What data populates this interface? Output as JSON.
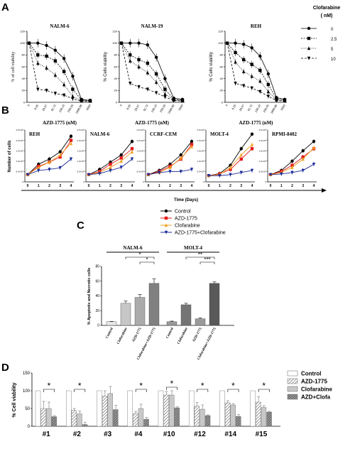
{
  "panels": {
    "A": "A",
    "B": "B",
    "C": "C",
    "D": "D"
  },
  "chart_data": [
    {
      "type": "line",
      "panel": "A",
      "x": [
        "0",
        "6.25",
        "26.07",
        "61.72",
        "156.15",
        "250.05",
        "1666.66",
        "5000"
      ],
      "xlabel": "AZD-1775 (nM)",
      "yticks": [
        "0",
        "20",
        "40",
        "60",
        "80",
        "100",
        "120"
      ],
      "ylim": [
        0,
        120
      ],
      "legend": {
        "title": "Clofarabine",
        "title_unit": "( nM)",
        "entries": [
          "0",
          "2.5",
          "5",
          "10"
        ]
      },
      "subplots": [
        {
          "title": "NALM-6",
          "ylabel": "% of cell viability",
          "series": [
            {
              "name": "0",
              "values": [
                100,
                100,
                96,
                88,
                74,
                44,
                5,
                3
              ]
            },
            {
              "name": "2.5",
              "values": [
                100,
                80,
                78,
                70,
                52,
                22,
                4,
                3
              ]
            },
            {
              "name": "5",
              "values": [
                100,
                66,
                58,
                46,
                30,
                10,
                3,
                2
              ]
            },
            {
              "name": "10",
              "values": [
                100,
                22,
                20,
                15,
                12,
                6,
                2,
                2
              ]
            }
          ]
        },
        {
          "title": "NALM-19",
          "ylabel": "% Cells viability",
          "series": [
            {
              "name": "0",
              "values": [
                100,
                100,
                100,
                97,
                76,
                40,
                7,
                5
              ]
            },
            {
              "name": "2.5",
              "values": [
                100,
                80,
                72,
                66,
                48,
                22,
                5,
                3
              ]
            },
            {
              "name": "5",
              "values": [
                100,
                70,
                60,
                50,
                34,
                14,
                4,
                3
              ]
            },
            {
              "name": "10",
              "values": [
                100,
                32,
                26,
                22,
                16,
                9,
                3,
                2
              ]
            }
          ]
        },
        {
          "title": "REH",
          "ylabel": "% Cells viability",
          "series": [
            {
              "name": "0",
              "values": [
                100,
                100,
                98,
                92,
                78,
                48,
                8,
                5
              ]
            },
            {
              "name": "2.5",
              "values": [
                100,
                84,
                72,
                64,
                54,
                30,
                6,
                4
              ]
            },
            {
              "name": "5",
              "values": [
                100,
                68,
                52,
                44,
                36,
                18,
                4,
                3
              ]
            },
            {
              "name": "10",
              "values": [
                100,
                32,
                28,
                24,
                18,
                10,
                3,
                2
              ]
            }
          ]
        }
      ]
    },
    {
      "type": "line",
      "panel": "B",
      "x": [
        "0",
        "1",
        "2",
        "3",
        "4"
      ],
      "xlabel": "Time (Days)",
      "ylabel": "Number of cells",
      "yticks": [
        "0",
        "5.0×10⁵",
        "1.0×10⁶",
        "1.5×10⁶",
        "2.0×10⁶",
        "2.5×10⁶"
      ],
      "ylim": [
        0,
        2.5
      ],
      "legend_entries": [
        "Control",
        "AZD-1775",
        "Clofarabine",
        "AZD-1775+Clofarabine"
      ],
      "subplots": [
        {
          "title": "REH",
          "series": [
            {
              "name": "Control",
              "values": [
                0.35,
                0.85,
                1.1,
                1.45,
                2.2
              ]
            },
            {
              "name": "AZD-1775",
              "values": [
                0.35,
                0.75,
                0.95,
                1.2,
                2.0
              ]
            },
            {
              "name": "Clofarabine",
              "values": [
                0.35,
                0.7,
                0.95,
                1.3,
                1.85
              ]
            },
            {
              "name": "AZD-1775+Clofarabine",
              "values": [
                0.35,
                0.55,
                0.6,
                0.68,
                1.1
              ]
            }
          ]
        },
        {
          "title": "NALM-6",
          "series": [
            {
              "name": "Control",
              "values": [
                0.35,
                0.6,
                0.95,
                1.3,
                1.95
              ]
            },
            {
              "name": "AZD-1775",
              "values": [
                0.35,
                0.5,
                0.85,
                1.15,
                1.6
              ]
            },
            {
              "name": "Clofarabine",
              "values": [
                0.35,
                0.45,
                0.7,
                1.0,
                1.45
              ]
            },
            {
              "name": "AZD-1775+Clofarabine",
              "values": [
                0.35,
                0.4,
                0.55,
                0.7,
                1.1
              ]
            }
          ]
        },
        {
          "title": "CCRF-CEM",
          "series": [
            {
              "name": "Control",
              "values": [
                0.35,
                0.55,
                0.85,
                1.3,
                1.95
              ]
            },
            {
              "name": "AZD-1775",
              "values": [
                0.35,
                0.5,
                0.75,
                1.1,
                1.8
              ]
            },
            {
              "name": "Clofarabine",
              "values": [
                0.35,
                0.45,
                0.7,
                1.15,
                1.7
              ]
            },
            {
              "name": "AZD-1775+Clofarabine",
              "values": [
                0.35,
                0.45,
                0.5,
                0.5,
                0.6
              ]
            }
          ]
        },
        {
          "title": "MOLT-4",
          "series": [
            {
              "name": "Control",
              "values": [
                0.3,
                0.4,
                0.8,
                1.6,
                2.3
              ]
            },
            {
              "name": "AZD-1775",
              "values": [
                0.3,
                0.38,
                0.6,
                1.1,
                1.6
              ]
            },
            {
              "name": "Clofarabine",
              "values": [
                0.3,
                0.35,
                0.7,
                1.3,
                1.8
              ]
            },
            {
              "name": "AZD-1775+Clofarabine",
              "values": [
                0.3,
                0.3,
                0.35,
                0.45,
                0.55
              ]
            }
          ]
        },
        {
          "title": "RPMI-8402",
          "series": [
            {
              "name": "Control",
              "values": [
                0.35,
                0.55,
                1.0,
                1.5,
                1.95
              ]
            },
            {
              "name": "AZD-1775",
              "values": [
                0.35,
                0.5,
                0.8,
                1.2,
                1.6
              ]
            },
            {
              "name": "Clofarabine",
              "values": [
                0.35,
                0.45,
                0.7,
                1.1,
                1.65
              ]
            },
            {
              "name": "AZD-1775+Clofarabine",
              "values": [
                0.35,
                0.38,
                0.45,
                0.55,
                0.85
              ]
            }
          ]
        }
      ]
    },
    {
      "type": "bar",
      "panel": "C",
      "ylabel": "% Apoptotic and Necrotic cells",
      "yticks": [
        "0",
        "20",
        "40",
        "60",
        "80"
      ],
      "ylim": [
        0,
        80
      ],
      "categories": [
        "Control",
        "Clofarabine",
        "AZD-1775",
        "Clofarabine+AZD-1775"
      ],
      "groups": [
        {
          "name": "NALM-6",
          "values": [
            5,
            30,
            38,
            57
          ],
          "errors": [
            0.5,
            3,
            4,
            6
          ],
          "significance": [
            "*",
            "*"
          ]
        },
        {
          "name": "MOLT-4",
          "values": [
            5,
            28,
            9,
            57
          ],
          "errors": [
            0.8,
            2,
            1,
            2
          ],
          "significance": [
            "**",
            "***"
          ]
        }
      ]
    },
    {
      "type": "bar",
      "panel": "D",
      "ylabel": "% Cell viability",
      "yticks": [
        "0",
        "50",
        "100",
        "150"
      ],
      "ylim": [
        0,
        150
      ],
      "legend_entries": [
        "Control",
        "AZD-1775",
        "Clofarabine",
        "AZD+Clofa"
      ],
      "categories": [
        "#1",
        "#2",
        "#3",
        "#4",
        "#10",
        "#12",
        "#14",
        "#15"
      ],
      "series": [
        {
          "name": "Control",
          "values": [
            100,
            100,
            100,
            100,
            100,
            100,
            100,
            100
          ]
        },
        {
          "name": "AZD-1775",
          "values": [
            50,
            45,
            85,
            36,
            88,
            57,
            66,
            68
          ]
        },
        {
          "name": "Clofarabine",
          "values": [
            50,
            35,
            92,
            50,
            88,
            48,
            60,
            53
          ]
        },
        {
          "name": "AZD+Clofa",
          "values": [
            27,
            5,
            47,
            20,
            52,
            30,
            28,
            40
          ]
        }
      ],
      "errors": [
        [
          0,
          0,
          0,
          0,
          0,
          0,
          0,
          0
        ],
        [
          20,
          5,
          15,
          6,
          10,
          10,
          6,
          15
        ],
        [
          18,
          8,
          20,
          12,
          12,
          12,
          4,
          5
        ],
        [
          3,
          6,
          12,
          5,
          3,
          2,
          5,
          2
        ]
      ],
      "significance": [
        "*",
        "*",
        "",
        "*",
        "*",
        "*",
        "*",
        "*"
      ]
    }
  ]
}
